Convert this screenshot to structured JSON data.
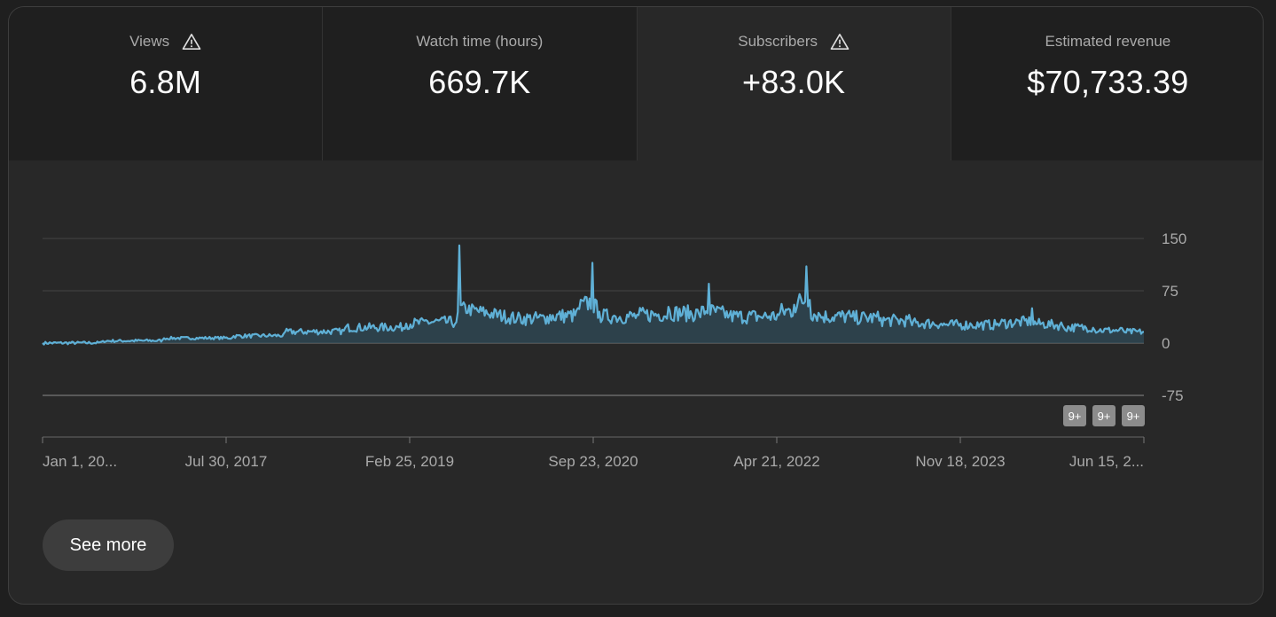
{
  "metrics": [
    {
      "label": "Views",
      "value": "6.8M",
      "warning": true
    },
    {
      "label": "Watch time (hours)",
      "value": "669.7K",
      "warning": false
    },
    {
      "label": "Subscribers",
      "value": "+83.0K",
      "warning": true
    },
    {
      "label": "Estimated revenue",
      "value": "$70,733.39",
      "warning": false
    }
  ],
  "active_tab": "Subscribers",
  "see_more_label": "See more",
  "badges": [
    "9+",
    "9+",
    "9+"
  ],
  "chart_data": {
    "type": "area",
    "title": "",
    "xlabel": "",
    "ylabel": "",
    "ylim": [
      -75,
      150
    ],
    "yticks": [
      "150",
      "75",
      "0",
      "-75"
    ],
    "xtick_labels": [
      "Jan 1, 20...",
      "Jul 30, 2017",
      "Feb 25, 2019",
      "Sep 23, 2020",
      "Apr 21, 2022",
      "Nov 18, 2023",
      "Jun 15, 2..."
    ],
    "line_color": "#5fb0d6",
    "series": [
      {
        "x": [
          "2016-01-01",
          "2016-07-01",
          "2017-01-01",
          "2017-07-30",
          "2018-01-01",
          "2018-07-01",
          "2019-01-01",
          "2019-02-25",
          "2019-06-01",
          "2019-06-10",
          "2019-12-01",
          "2020-03-01",
          "2020-06-01",
          "2020-07-15",
          "2020-08-05",
          "2020-09-23",
          "2020-12-01",
          "2021-03-01",
          "2021-06-01",
          "2021-07-01",
          "2021-09-01",
          "2021-12-01",
          "2022-02-01",
          "2022-03-15",
          "2022-04-21",
          "2022-05-01",
          "2022-06-01",
          "2022-09-01",
          "2022-12-01",
          "2023-03-01",
          "2023-06-01",
          "2023-09-01",
          "2023-11-18",
          "2024-03-01",
          "2024-06-01",
          "2024-09-01",
          "2024-12-01",
          "2025-02-01"
        ],
        "y": [
          0,
          3,
          7,
          10,
          16,
          22,
          28,
          32,
          30,
          140,
          35,
          38,
          50,
          115,
          45,
          38,
          40,
          52,
          42,
          85,
          40,
          38,
          45,
          55,
          110,
          62,
          40,
          38,
          36,
          32,
          28,
          26,
          28,
          50,
          25,
          22,
          18,
          16
        ]
      }
    ]
  }
}
